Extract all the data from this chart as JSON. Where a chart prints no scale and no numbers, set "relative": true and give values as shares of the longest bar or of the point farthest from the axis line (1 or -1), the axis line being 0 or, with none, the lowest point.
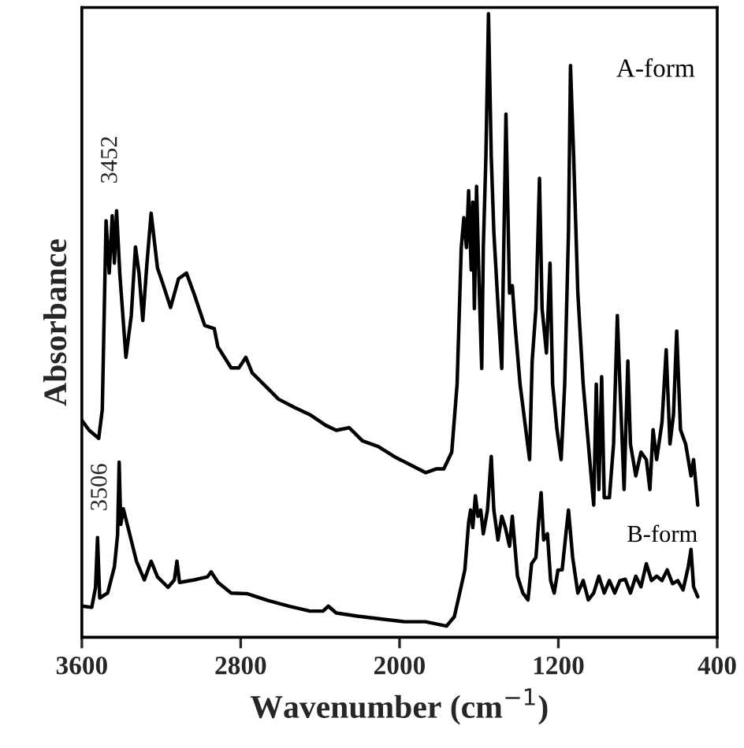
{
  "chart_data": {
    "type": "line",
    "relative": true,
    "xlabel": "Wavenumber (cm$^{−1}$)",
    "ylabel": "Absorbance",
    "xlim": [
      3600,
      400
    ],
    "xticks": [
      3600,
      2800,
      2000,
      1200,
      400
    ],
    "grid": false,
    "legend": false,
    "marker": "none",
    "line_style": "solid",
    "annotations": [
      "3452",
      "3506"
    ],
    "series": [
      {
        "name": "A-form",
        "color": "#000000",
        "x": [
          3600,
          3563,
          3515,
          3497,
          3478,
          3462,
          3447,
          3436,
          3425,
          3409,
          3378,
          3351,
          3330,
          3312,
          3293,
          3272,
          3251,
          3219,
          3192,
          3153,
          3113,
          3073,
          3034,
          2981,
          2933,
          2915,
          2848,
          2809,
          2774,
          2742,
          2663,
          2610,
          2531,
          2451,
          2372,
          2319,
          2253,
          2187,
          2107,
          2028,
          1948,
          1869,
          1816,
          1777,
          1737,
          1710,
          1689,
          1676,
          1663,
          1652,
          1639,
          1631,
          1623,
          1612,
          1599,
          1586,
          1578,
          1565,
          1552,
          1538,
          1525,
          1499,
          1485,
          1464,
          1446,
          1432,
          1419,
          1393,
          1345,
          1332,
          1313,
          1295,
          1282,
          1260,
          1242,
          1229,
          1207,
          1186,
          1168,
          1149,
          1139,
          1123,
          1102,
          1075,
          1049,
          1022,
          1009,
          996,
          982,
          969,
          943,
          922,
          903,
          890,
          869,
          850,
          837,
          810,
          784,
          757,
          739,
          723,
          705,
          678,
          657,
          638,
          620,
          604,
          585,
          559,
          532,
          519,
          498
        ],
        "values": [
          0.348,
          0.332,
          0.319,
          0.365,
          0.668,
          0.584,
          0.676,
          0.6,
          0.684,
          0.584,
          0.449,
          0.516,
          0.626,
          0.584,
          0.508,
          0.6,
          0.68,
          0.592,
          0.567,
          0.529,
          0.575,
          0.584,
          0.55,
          0.5,
          0.495,
          0.466,
          0.432,
          0.432,
          0.449,
          0.424,
          0.399,
          0.382,
          0.369,
          0.357,
          0.34,
          0.332,
          0.336,
          0.315,
          0.306,
          0.29,
          0.277,
          0.264,
          0.27,
          0.27,
          0.297,
          0.406,
          0.625,
          0.673,
          0.625,
          0.716,
          0.589,
          0.698,
          0.527,
          0.723,
          0.564,
          0.431,
          0.625,
          0.771,
          1.0,
          0.771,
          0.65,
          0.504,
          0.431,
          0.839,
          0.552,
          0.564,
          0.504,
          0.406,
          0.285,
          0.443,
          0.527,
          0.736,
          0.527,
          0.456,
          0.6,
          0.406,
          0.333,
          0.285,
          0.406,
          0.65,
          0.917,
          0.771,
          0.552,
          0.406,
          0.31,
          0.212,
          0.406,
          0.237,
          0.418,
          0.224,
          0.224,
          0.31,
          0.516,
          0.406,
          0.237,
          0.443,
          0.31,
          0.259,
          0.297,
          0.285,
          0.237,
          0.333,
          0.285,
          0.345,
          0.461,
          0.31,
          0.358,
          0.491,
          0.333,
          0.31,
          0.259,
          0.285,
          0.212
        ]
      },
      {
        "name": "B-form",
        "color": "#000000",
        "x": [
          3600,
          3550,
          3531,
          3521,
          3510,
          3470,
          3436,
          3420,
          3412,
          3404,
          3391,
          3364,
          3325,
          3285,
          3251,
          3219,
          3166,
          3134,
          3121,
          3108,
          3034,
          2967,
          2949,
          2914,
          2848,
          2769,
          2663,
          2557,
          2451,
          2385,
          2359,
          2319,
          2213,
          2081,
          1975,
          1869,
          1763,
          1724,
          1697,
          1671,
          1652,
          1642,
          1631,
          1618,
          1605,
          1591,
          1578,
          1557,
          1538,
          1525,
          1504,
          1485,
          1467,
          1446,
          1432,
          1406,
          1379,
          1353,
          1335,
          1313,
          1300,
          1287,
          1274,
          1255,
          1239,
          1221,
          1202,
          1181,
          1162,
          1149,
          1128,
          1102,
          1075,
          1049,
          1022,
          996,
          969,
          943,
          916,
          890,
          863,
          837,
          810,
          784,
          757,
          731,
          705,
          678,
          652,
          625,
          599,
          572,
          546,
          532,
          519,
          498
        ],
        "values": [
          0.05,
          0.048,
          0.08,
          0.16,
          0.063,
          0.071,
          0.113,
          0.164,
          0.281,
          0.181,
          0.206,
          0.172,
          0.122,
          0.092,
          0.122,
          0.097,
          0.08,
          0.092,
          0.122,
          0.088,
          0.092,
          0.097,
          0.105,
          0.088,
          0.071,
          0.07,
          0.059,
          0.05,
          0.042,
          0.042,
          0.05,
          0.039,
          0.034,
          0.029,
          0.025,
          0.025,
          0.018,
          0.033,
          0.071,
          0.108,
          0.184,
          0.204,
          0.176,
          0.227,
          0.194,
          0.204,
          0.166,
          0.204,
          0.29,
          0.204,
          0.156,
          0.194,
          0.176,
          0.146,
          0.194,
          0.098,
          0.071,
          0.06,
          0.118,
          0.128,
          0.184,
          0.232,
          0.156,
          0.166,
          0.091,
          0.071,
          0.108,
          0.108,
          0.166,
          0.204,
          0.128,
          0.071,
          0.091,
          0.06,
          0.071,
          0.098,
          0.071,
          0.091,
          0.071,
          0.091,
          0.093,
          0.071,
          0.098,
          0.081,
          0.118,
          0.091,
          0.098,
          0.091,
          0.108,
          0.086,
          0.091,
          0.076,
          0.113,
          0.141,
          0.081,
          0.065
        ]
      }
    ]
  }
}
